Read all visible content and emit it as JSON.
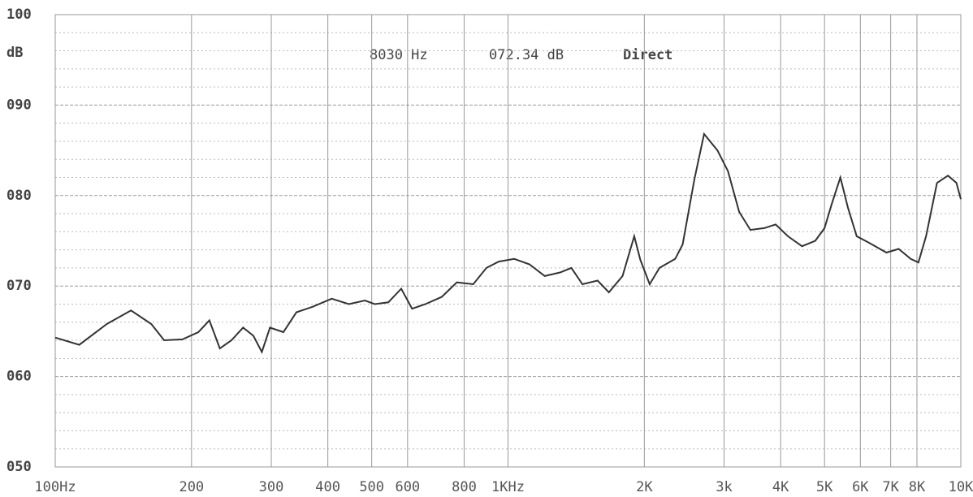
{
  "chart_data": {
    "type": "line",
    "y_label": "dB",
    "readout": [
      "8030 Hz",
      "072.34 dB",
      "Direct"
    ],
    "x_log": true,
    "grid": true,
    "color": "#333333",
    "xlim": [
      100,
      10000
    ],
    "ylim": [
      50,
      100
    ],
    "yticks": [
      100,
      {
        "value": 90,
        "label": "090"
      },
      {
        "value": 80,
        "label": "080"
      },
      {
        "value": 70,
        "label": "070"
      },
      {
        "value": 60,
        "label": "060"
      },
      {
        "value": 50,
        "label": "050"
      }
    ],
    "yminorticks": [
      52,
      54,
      56,
      58,
      62,
      64,
      66,
      68,
      72,
      74,
      76,
      78,
      82,
      84,
      86,
      88,
      92,
      94,
      96,
      98
    ],
    "xticks": [
      {
        "value": 100,
        "label": "100Hz"
      },
      200,
      300,
      400,
      500,
      600,
      800,
      {
        "value": 1000,
        "label": "1KHz"
      },
      {
        "value": 2000,
        "label": "2K"
      },
      {
        "value": 3000,
        "label": "3k"
      },
      {
        "value": 4000,
        "label": "4K"
      },
      {
        "value": 5000,
        "label": "5K"
      },
      {
        "value": 6000,
        "label": "6K"
      },
      {
        "value": 7000,
        "label": "7K"
      },
      {
        "value": 8000,
        "label": "8K"
      },
      {
        "value": 10000,
        "label": "10K"
      }
    ],
    "x": [
      100,
      113,
      130,
      147,
      163,
      174,
      191,
      207,
      219,
      231,
      245,
      260,
      274,
      286,
      298,
      319,
      341,
      370,
      408,
      445,
      483,
      508,
      544,
      581,
      614,
      657,
      714,
      771,
      838,
      896,
      954,
      1032,
      1115,
      1205,
      1303,
      1380,
      1460,
      1577,
      1670,
      1790,
      1900,
      1960,
      2055,
      2160,
      2340,
      2430,
      2580,
      2710,
      2900,
      3060,
      3240,
      3430,
      3680,
      3900,
      4150,
      4460,
      4770,
      5000,
      5190,
      5420,
      5630,
      5890,
      6260,
      6850,
      7290,
      7750,
      8060,
      8380,
      8860,
      9370,
      9780,
      10000
    ],
    "values": [
      64.3,
      63.5,
      65.8,
      67.3,
      65.8,
      64,
      64.1,
      64.9,
      66.2,
      63.1,
      64,
      65.4,
      64.5,
      62.7,
      65.4,
      64.9,
      67.1,
      67.7,
      68.6,
      68,
      68.4,
      68,
      68.2,
      69.7,
      67.5,
      68,
      68.8,
      70.4,
      70.2,
      72,
      72.7,
      73,
      72.4,
      71.1,
      71.5,
      72,
      70.2,
      70.6,
      69.3,
      71.1,
      75.5,
      72.9,
      70.2,
      72,
      73,
      74.6,
      81.8,
      86.8,
      85,
      82.7,
      78.2,
      76.2,
      76.4,
      76.8,
      75.5,
      74.4,
      75,
      76.4,
      79.1,
      82,
      78.7,
      75.5,
      74.8,
      73.7,
      74.1,
      73,
      72.6,
      75.5,
      81.4,
      82.2,
      81.4,
      79.6
    ]
  }
}
